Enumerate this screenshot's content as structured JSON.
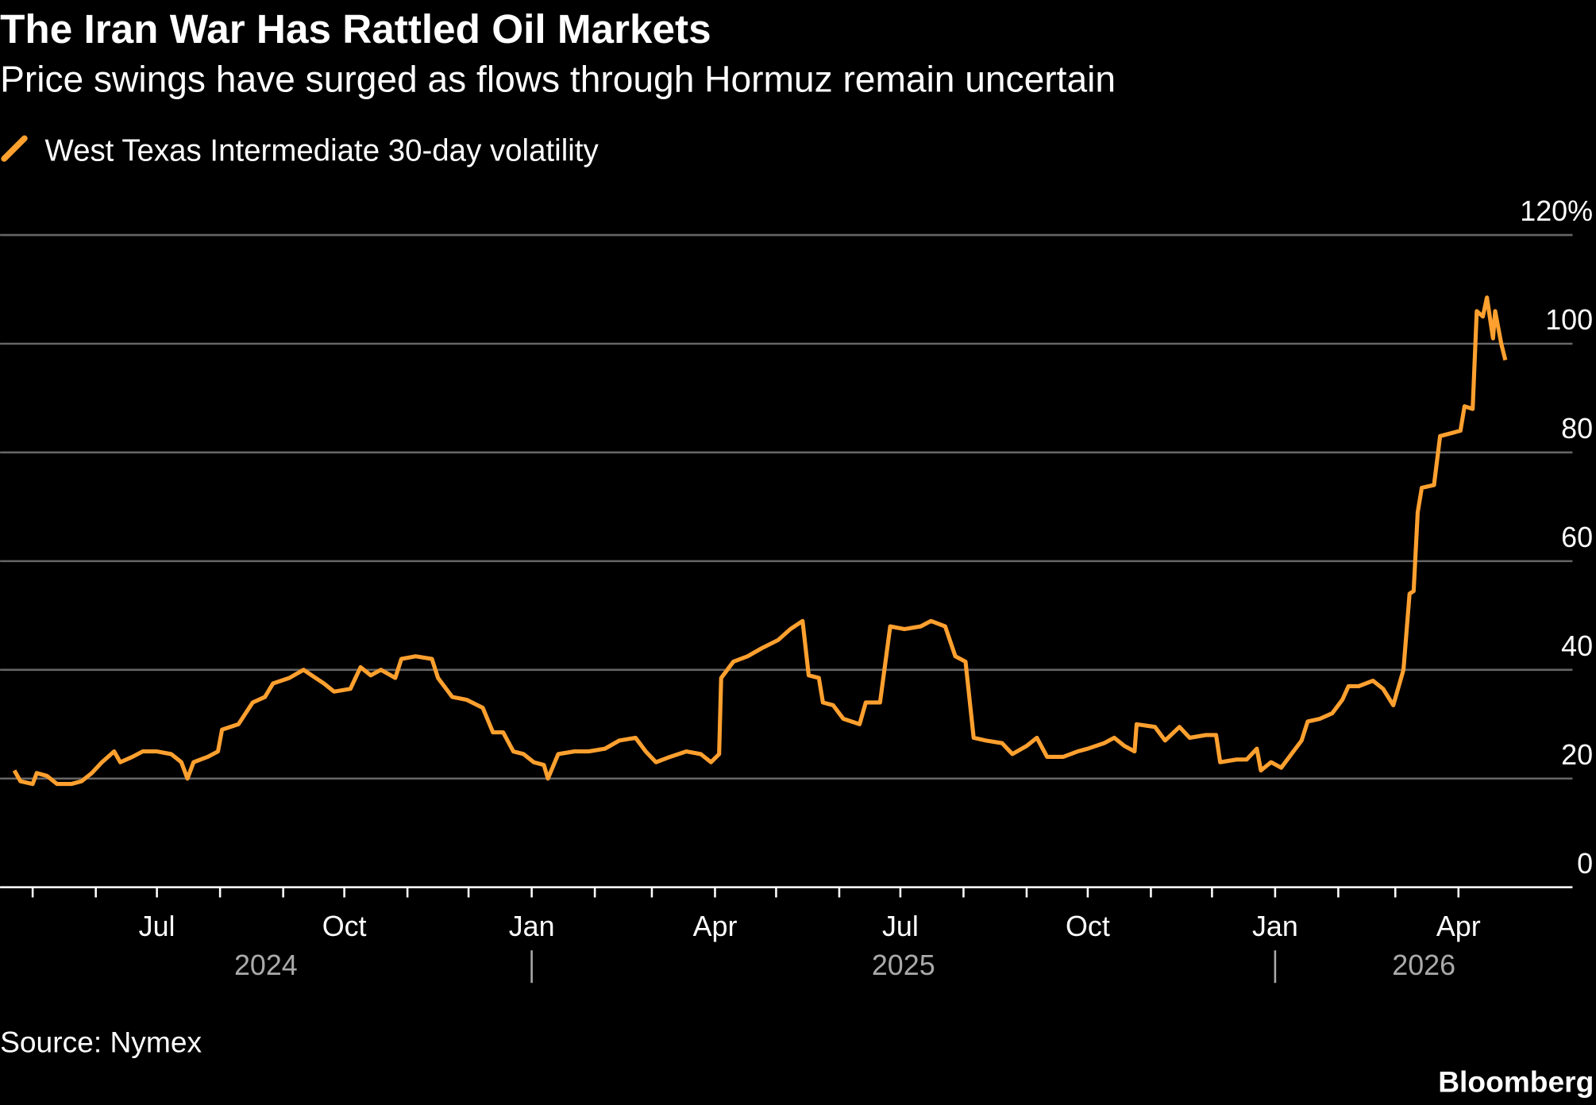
{
  "chart_data": {
    "type": "line",
    "title": "The Iran War Has Rattled Oil Markets",
    "subtitle": "Price swings have surged as flows through Hormuz remain uncertain",
    "source": "Source: Nymex",
    "brand": "Bloomberg",
    "x": [
      "2024-04-22",
      "2024-04-25",
      "2024-05-01",
      "2024-05-03",
      "2024-05-08",
      "2024-05-13",
      "2024-05-20",
      "2024-05-25",
      "2024-05-30",
      "2024-06-04",
      "2024-06-10",
      "2024-06-13",
      "2024-06-19",
      "2024-06-24",
      "2024-07-01",
      "2024-07-08",
      "2024-07-13",
      "2024-07-16",
      "2024-07-19",
      "2024-07-26",
      "2024-07-31",
      "2024-08-02",
      "2024-08-10",
      "2024-08-17",
      "2024-08-23",
      "2024-08-27",
      "2024-09-04",
      "2024-09-11",
      "2024-09-15",
      "2024-09-21",
      "2024-09-26",
      "2024-10-04",
      "2024-10-09",
      "2024-10-14",
      "2024-10-19",
      "2024-10-26",
      "2024-10-29",
      "2024-11-05",
      "2024-11-13",
      "2024-11-16",
      "2024-11-23",
      "2024-11-30",
      "2024-12-08",
      "2024-12-13",
      "2024-12-18",
      "2024-12-23",
      "2024-12-28",
      "2025-01-02",
      "2025-01-07",
      "2025-01-09",
      "2025-01-14",
      "2025-01-22",
      "2025-01-29",
      "2025-02-06",
      "2025-02-13",
      "2025-02-21",
      "2025-02-26",
      "2025-03-03",
      "2025-03-10",
      "2025-03-18",
      "2025-03-25",
      "2025-03-30",
      "2025-04-03",
      "2025-04-04",
      "2025-04-10",
      "2025-04-17",
      "2025-04-24",
      "2025-05-02",
      "2025-05-08",
      "2025-05-14",
      "2025-05-17",
      "2025-05-22",
      "2025-05-24",
      "2025-05-29",
      "2025-06-03",
      "2025-06-11",
      "2025-06-14",
      "2025-06-21",
      "2025-06-26",
      "2025-07-03",
      "2025-07-11",
      "2025-07-16",
      "2025-07-23",
      "2025-07-28",
      "2025-08-02",
      "2025-08-06",
      "2025-08-12",
      "2025-08-20",
      "2025-08-25",
      "2025-09-01",
      "2025-09-06",
      "2025-09-11",
      "2025-09-19",
      "2025-09-26",
      "2025-10-01",
      "2025-10-09",
      "2025-10-14",
      "2025-10-19",
      "2025-10-24",
      "2025-10-25",
      "2025-11-03",
      "2025-11-08",
      "2025-11-15",
      "2025-11-20",
      "2025-11-28",
      "2025-12-03",
      "2025-12-05",
      "2025-12-13",
      "2025-12-18",
      "2025-12-23",
      "2025-12-25",
      "2025-12-30",
      "2026-01-04",
      "2026-01-09",
      "2026-01-14",
      "2026-01-17",
      "2026-01-23",
      "2026-01-29",
      "2026-02-03",
      "2026-02-06",
      "2026-02-11",
      "2026-02-18",
      "2026-02-23",
      "2026-02-28",
      "2026-03-05",
      "2026-03-08",
      "2026-03-10",
      "2026-03-12",
      "2026-03-14",
      "2026-03-20",
      "2026-03-23",
      "2026-03-28",
      "2026-04-02",
      "2026-04-04",
      "2026-04-08",
      "2026-04-10",
      "2026-04-13",
      "2026-04-15",
      "2026-04-18",
      "2026-04-19",
      "2026-04-22",
      "2026-04-24"
    ],
    "series": [
      {
        "name": "West Texas Intermediate 30-day volatility",
        "color": "#ffa02f",
        "values": [
          21.5,
          19.5,
          19,
          21,
          20.5,
          19,
          19,
          19.5,
          21,
          23,
          25,
          23,
          24,
          25,
          25,
          24.5,
          23,
          20,
          23,
          24,
          25,
          29,
          30,
          34,
          35,
          37.5,
          38.5,
          40,
          39,
          37.5,
          36,
          36.5,
          40.5,
          39,
          40,
          38.5,
          42,
          42.5,
          42,
          38.5,
          35,
          34.5,
          33,
          28.5,
          28.5,
          25,
          24.5,
          23,
          22.5,
          20,
          24.5,
          25,
          25,
          25.5,
          27,
          27.5,
          25,
          23,
          24,
          25,
          24.5,
          23,
          24.5,
          38.5,
          41.5,
          42.5,
          44,
          45.5,
          47.5,
          49,
          39,
          38.5,
          34,
          33.5,
          31,
          30,
          34,
          34,
          48,
          47.5,
          48,
          49,
          48,
          42.5,
          41.5,
          27.5,
          27,
          26.5,
          24.5,
          26,
          27.5,
          24,
          24,
          25,
          25.5,
          26.5,
          27.5,
          26,
          25,
          30,
          29.5,
          27,
          29.5,
          27.5,
          28,
          28,
          23,
          23.5,
          23.5,
          25.5,
          21.5,
          23,
          22,
          24.5,
          27,
          30.5,
          31,
          32,
          34.5,
          37,
          37,
          38,
          36.5,
          33.5,
          40,
          54,
          54.5,
          69,
          73.5,
          74,
          83,
          83.5,
          84,
          88.5,
          88,
          106,
          105,
          108.5,
          101,
          106,
          100,
          97
        ]
      }
    ],
    "xlim": [
      "2024-04-15",
      "2026-05-27"
    ],
    "xticks": [
      {
        "value": "2024-07",
        "label": "Jul"
      },
      {
        "value": "2024-10",
        "label": "Oct"
      },
      {
        "value": "2025-01",
        "label": "Jan"
      },
      {
        "value": "2025-04",
        "label": "Apr"
      },
      {
        "value": "2025-07",
        "label": "Jul"
      },
      {
        "value": "2025-10",
        "label": "Oct"
      },
      {
        "value": "2026-01",
        "label": "Jan"
      },
      {
        "value": "2026-04",
        "label": "Apr"
      }
    ],
    "xminorticks": [
      "2024-05",
      "2024-06",
      "2024-08",
      "2024-09",
      "2024-11",
      "2024-12",
      "2025-02",
      "2025-03",
      "2025-05",
      "2025-06",
      "2025-08",
      "2025-09",
      "2025-11",
      "2025-12",
      "2026-02",
      "2026-03"
    ],
    "years": [
      "2024",
      "2025",
      "2026"
    ],
    "ylim": [
      0,
      120
    ],
    "yticks": [
      0,
      20,
      40,
      60,
      80,
      100,
      {
        "value": 120,
        "label": "120%"
      }
    ],
    "grid": true
  }
}
